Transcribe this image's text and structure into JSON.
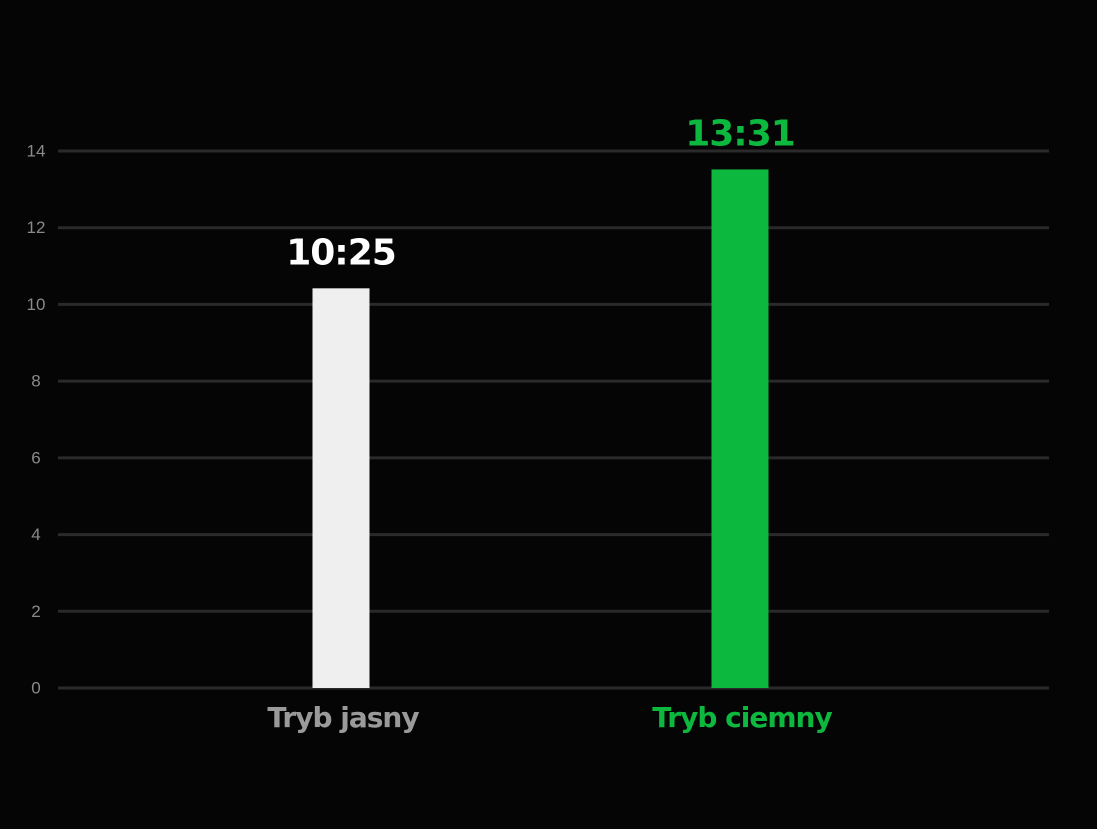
{
  "chart_data": {
    "type": "bar",
    "categories": [
      "Tryb jasny",
      "Tryb ciemny"
    ],
    "values": [
      10.42,
      13.52
    ],
    "value_labels": [
      "10:25",
      "13:31"
    ],
    "colors": [
      "#efefef",
      "#0db83f"
    ],
    "value_label_colors": [
      "#ffffff",
      "#0db83f"
    ],
    "category_colors": [
      "#9a9a9a",
      "#0db83f"
    ],
    "ylim": [
      0,
      14
    ],
    "yticks": [
      0,
      2,
      4,
      6,
      8,
      10,
      12,
      14
    ],
    "grid": true
  }
}
